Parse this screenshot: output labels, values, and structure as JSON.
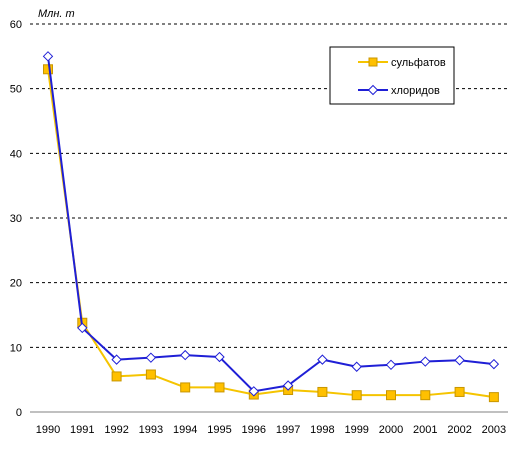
{
  "chart_data": {
    "type": "line",
    "title": "",
    "xlabel": "",
    "ylabel": "Млн. т",
    "ylim": [
      0,
      60
    ],
    "yticks": [
      "0",
      "10",
      "20",
      "30",
      "40",
      "50",
      "60"
    ],
    "grid": "horizontal dashed",
    "legend_position": "top-right",
    "categories": [
      "1990",
      "1991",
      "1992",
      "1993",
      "1994",
      "1995",
      "1996",
      "1997",
      "1998",
      "1999",
      "2000",
      "2001",
      "2002",
      "2003"
    ],
    "series": [
      {
        "name": "сульфатов",
        "color": "#F5C400",
        "marker": "square",
        "marker_color": "#FFC000",
        "values": [
          53,
          13.8,
          5.5,
          5.8,
          3.8,
          3.8,
          2.7,
          3.4,
          3.1,
          2.6,
          2.6,
          2.6,
          3.1,
          2.3
        ]
      },
      {
        "name": "хлоридов",
        "color": "#1F1FD6",
        "marker": "diamond",
        "marker_color": "#FFFFFF",
        "values": [
          55,
          13,
          8.1,
          8.4,
          8.8,
          8.5,
          3.2,
          4.1,
          8.1,
          7.0,
          7.3,
          7.8,
          8.0,
          7.4
        ]
      }
    ]
  }
}
